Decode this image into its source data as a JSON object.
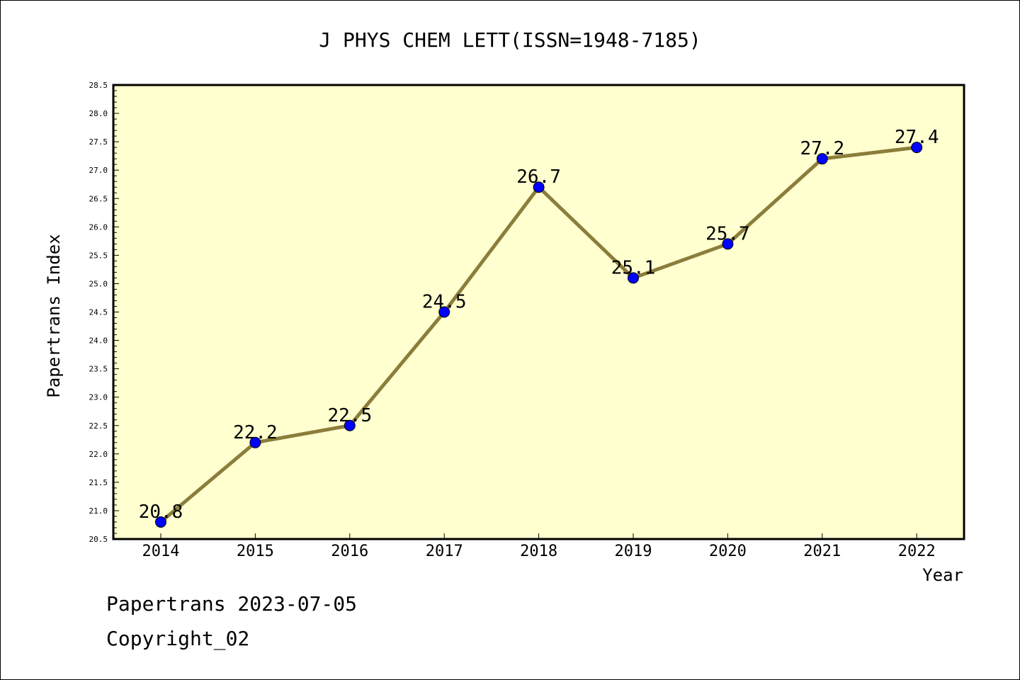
{
  "chart_data": {
    "type": "line",
    "title": "J PHYS CHEM LETT(ISSN=1948-7185)",
    "xlabel": "Year",
    "ylabel": "Papertrans Index",
    "x": [
      "2014",
      "2015",
      "2016",
      "2017",
      "2018",
      "2019",
      "2020",
      "2021",
      "2022"
    ],
    "values": [
      20.8,
      22.2,
      22.5,
      24.5,
      26.7,
      25.1,
      25.7,
      27.2,
      27.4
    ],
    "data_labels": [
      "20.8",
      "22.2",
      "22.5",
      "24.5",
      "26.7",
      "25.1",
      "25.7",
      "27.2",
      "27.4"
    ],
    "ylim": [
      20.5,
      28.5
    ],
    "yticks": [
      "20.5",
      "21.0",
      "21.5",
      "22.0",
      "22.5",
      "23.0",
      "23.5",
      "24.0",
      "24.5",
      "25.0",
      "25.5",
      "26.0",
      "26.5",
      "27.0",
      "27.5",
      "28.0",
      "28.5"
    ],
    "grid": false,
    "colors": {
      "plot_background": "#ffffd0",
      "line": "#8b7d3a",
      "marker": "#0000ff"
    }
  },
  "footer": {
    "line1": "Papertrans 2023-07-05",
    "line2": "Copyright_02"
  }
}
